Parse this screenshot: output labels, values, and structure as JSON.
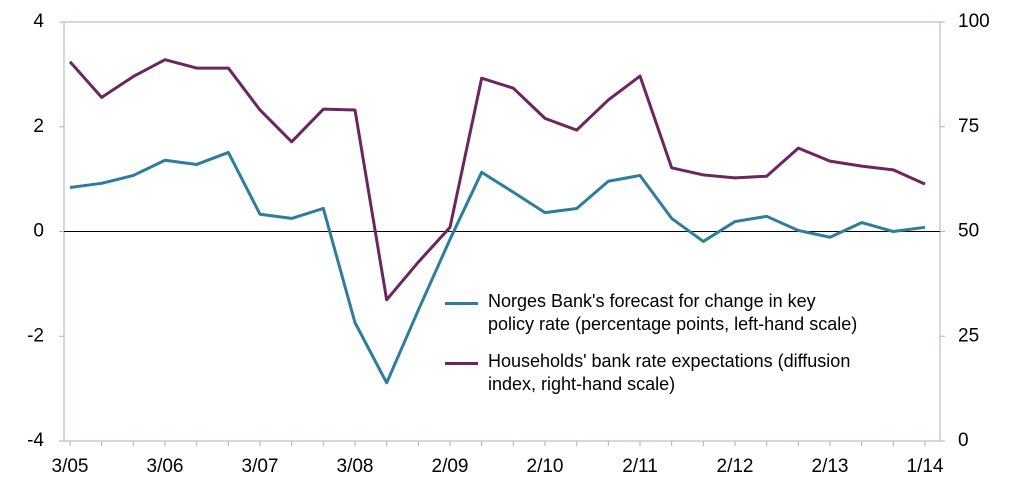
{
  "chart_data": {
    "type": "line",
    "categories": [
      "3/05",
      null,
      null,
      "3/06",
      null,
      null,
      "3/07",
      null,
      null,
      "3/08",
      null,
      null,
      "2/09",
      null,
      null,
      "2/10",
      null,
      null,
      "2/11",
      null,
      null,
      "2/12",
      null,
      null,
      "2/13",
      null,
      null,
      "1/14"
    ],
    "series": [
      {
        "name": "Norges Bank's forecast for change in key\npolicy rate (percentage points, left-hand scale)",
        "color": "#2e7d9a",
        "values": [
          0.84,
          0.92,
          1.07,
          1.36,
          1.28,
          1.51,
          0.33,
          0.25,
          0.44,
          -1.74,
          -2.89,
          -1.5,
          -0.15,
          1.13,
          0.75,
          0.36,
          0.44,
          0.96,
          1.07,
          0.25,
          -0.19,
          0.19,
          0.29,
          0.02,
          -0.11,
          0.17,
          0.0,
          0.08
        ]
      },
      {
        "name": "Households' bank rate expectations (diffusion\nindex, right-hand scale)",
        "color": "#6b2560",
        "axis": "y2",
        "values": [
          90.5,
          82,
          87,
          91,
          89,
          89,
          79,
          71.4,
          79.2,
          79,
          33.7,
          42.7,
          51,
          86.6,
          84.2,
          77,
          74.2,
          81.4,
          87.1,
          65.2,
          63.5,
          62.8,
          63.2,
          69.9,
          66.8,
          65.6,
          64.7,
          61.3
        ]
      }
    ],
    "ylim": [
      -4,
      4
    ],
    "yticks": [
      -4,
      -2,
      0,
      2,
      4
    ],
    "y2lim": [
      0,
      100
    ],
    "y2ticks": [
      0,
      25,
      50,
      75,
      100
    ]
  }
}
